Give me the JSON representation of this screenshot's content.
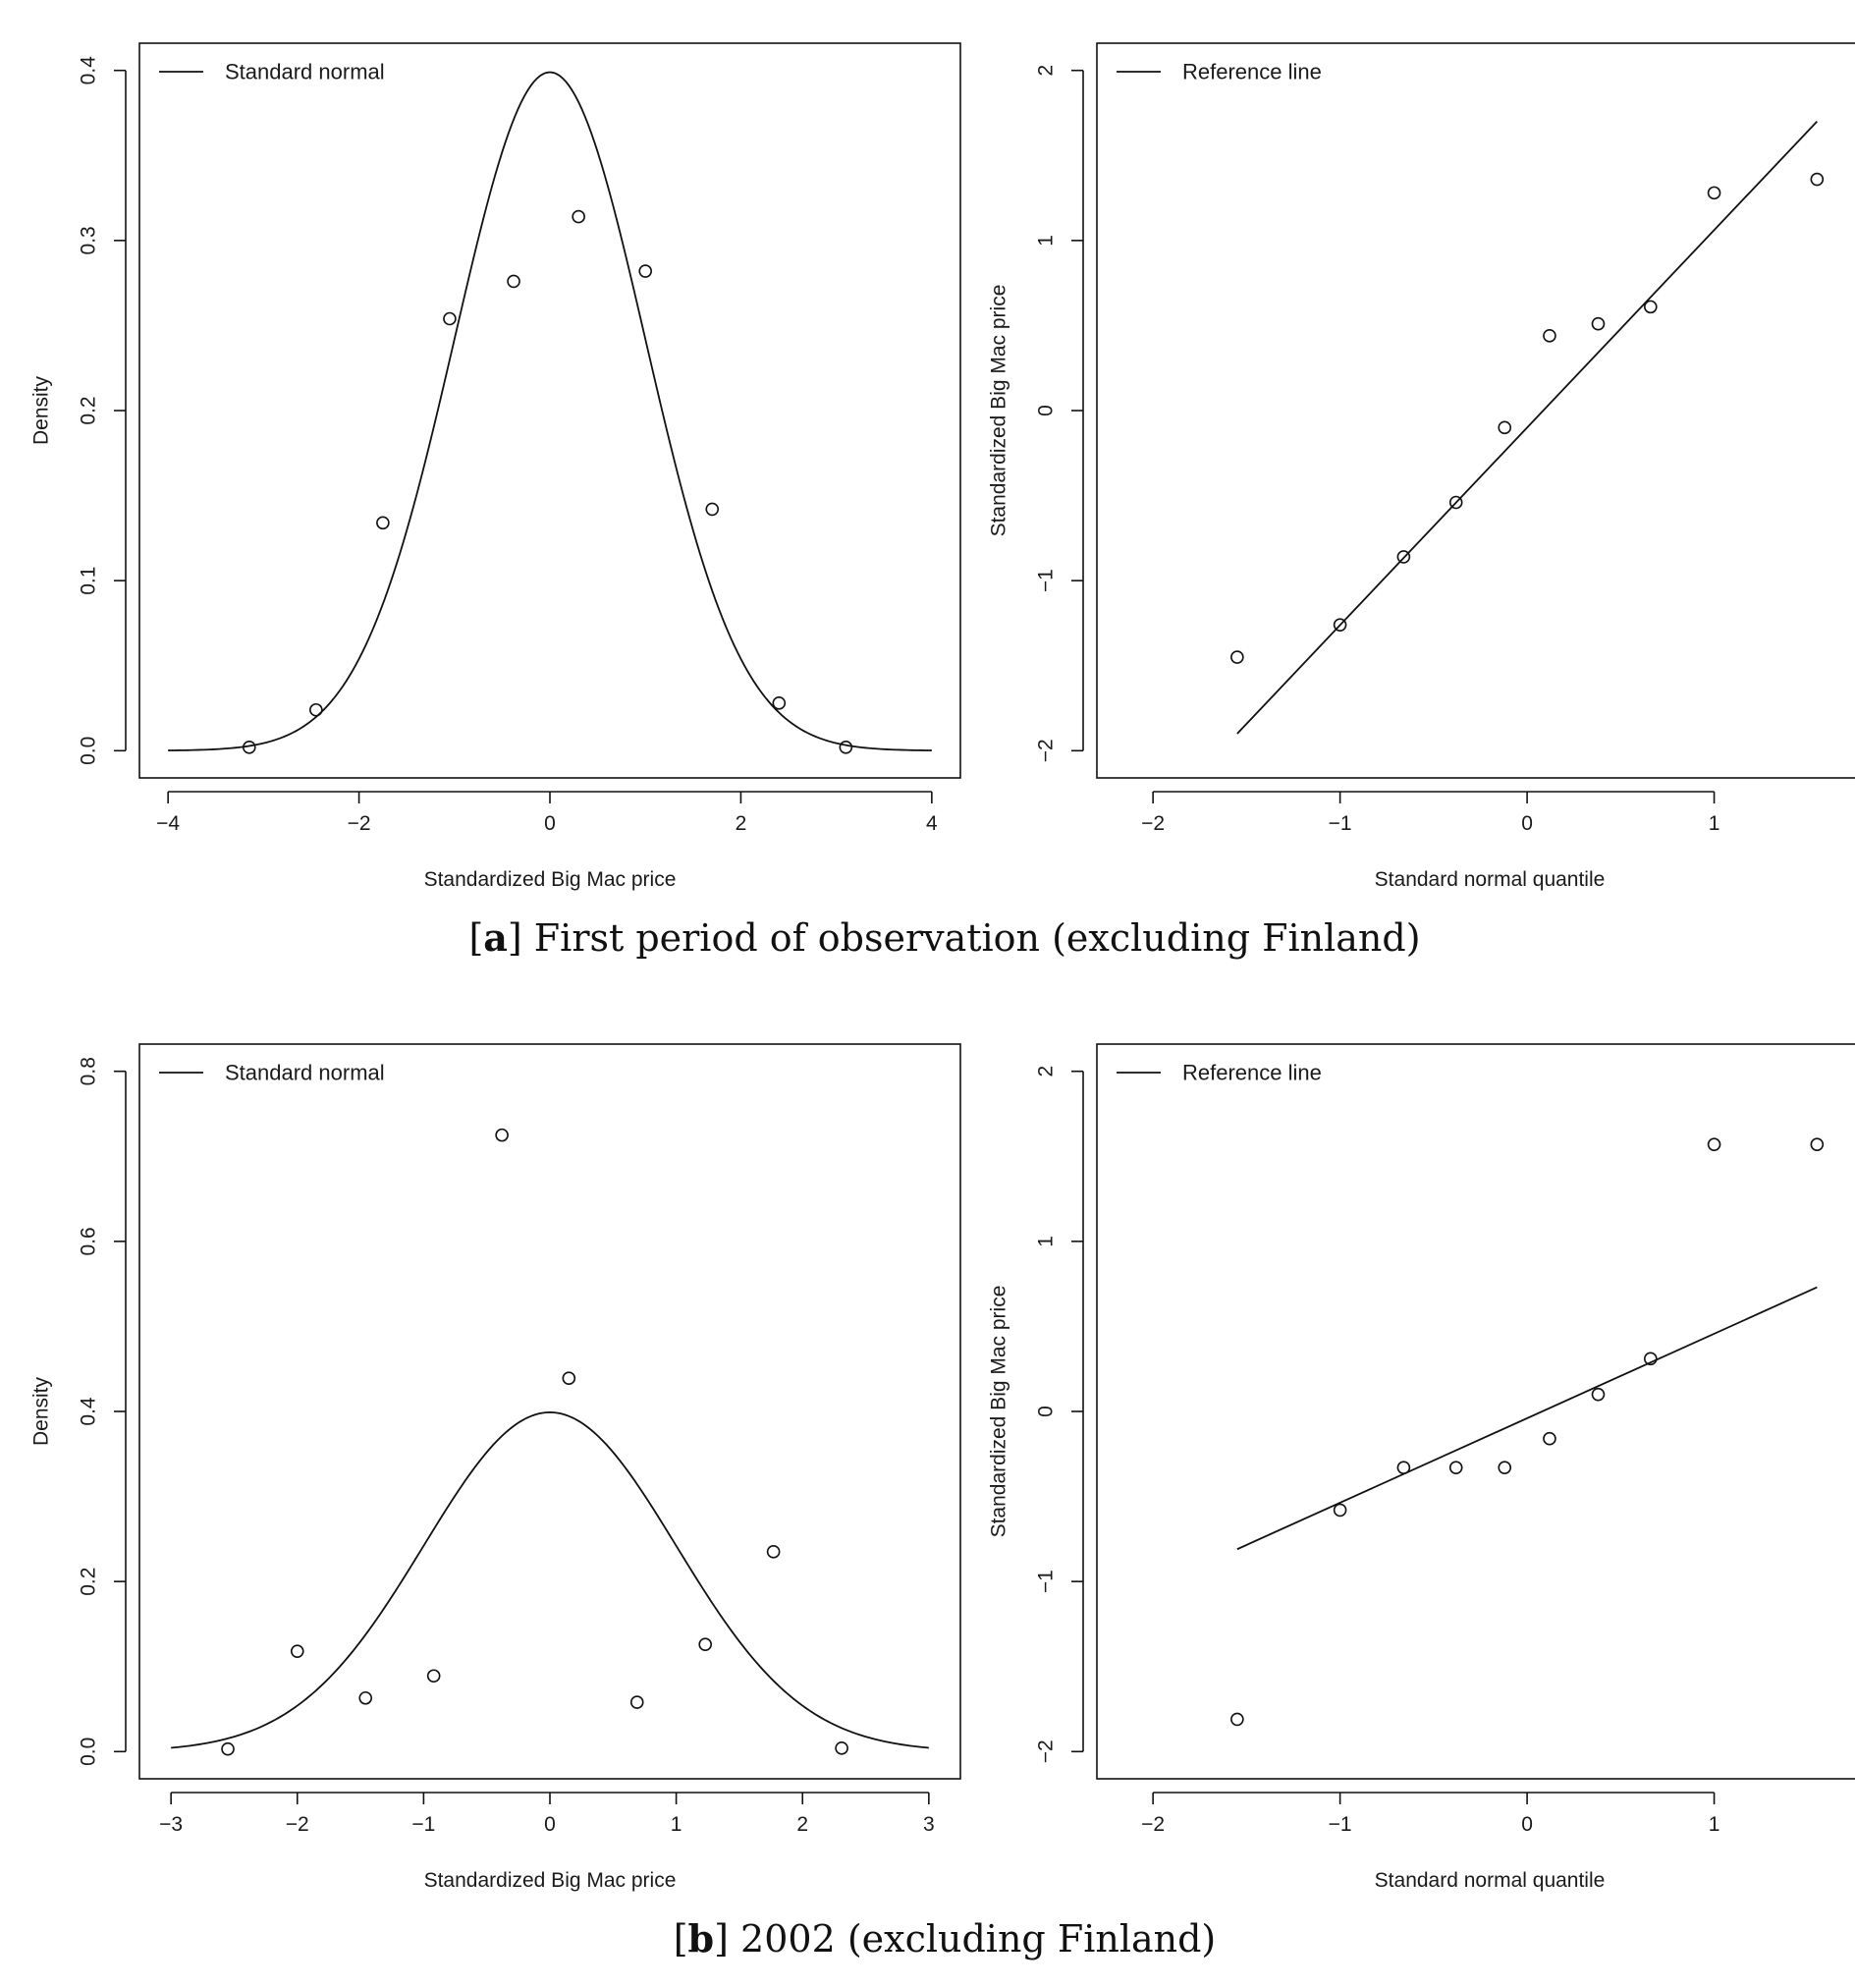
{
  "captions": {
    "a_letter": "a",
    "a_text": " First period of observation (excluding Finland)",
    "b_letter": "b",
    "b_text": " 2002 (excluding Finland)"
  },
  "chart_data": [
    {
      "id": "a-density",
      "type": "line",
      "xlabel": "Standardized Big Mac price",
      "ylabel": "Density",
      "xlim": [
        -4.3,
        4.3
      ],
      "ylim": [
        -0.016,
        0.416
      ],
      "xticks": [
        -4,
        -2,
        0,
        2,
        4
      ],
      "yticks": [
        0.0,
        0.1,
        0.2,
        0.3,
        0.4
      ],
      "xtick_labels": [
        "−4",
        "−2",
        "0",
        "2",
        "4"
      ],
      "ytick_labels": [
        "0.0",
        "0.1",
        "0.2",
        "0.3",
        "0.4"
      ],
      "legend": {
        "label": "Standard normal",
        "position": "top-left"
      },
      "curve": {
        "name": "Standard normal",
        "function": "standard normal density",
        "x_range": [
          -4,
          4
        ]
      },
      "points": {
        "x": [
          -3.15,
          -2.45,
          -1.75,
          -1.05,
          -0.38,
          0.3,
          1.0,
          1.7,
          2.4,
          3.1
        ],
        "y": [
          0.002,
          0.024,
          0.134,
          0.254,
          0.276,
          0.314,
          0.282,
          0.142,
          0.028,
          0.002
        ]
      }
    },
    {
      "id": "a-qq",
      "type": "scatter",
      "xlabel": "Standard normal quantile",
      "ylabel": "Standardized Big Mac price",
      "xlim": [
        -2.3,
        1.9
      ],
      "ylim": [
        -2.16,
        2.16
      ],
      "xticks": [
        -2,
        -1,
        0,
        1
      ],
      "yticks": [
        -2,
        -1,
        0,
        1,
        2
      ],
      "xtick_labels": [
        "−2",
        "−1",
        "0",
        "1"
      ],
      "ytick_labels": [
        "−2",
        "−1",
        "0",
        "1",
        "2"
      ],
      "legend": {
        "label": "Reference line",
        "position": "top-left"
      },
      "reference_line": {
        "name": "Reference line",
        "x": [
          -1.55,
          1.55
        ],
        "y": [
          -1.9,
          1.7
        ]
      },
      "points": {
        "x": [
          -1.55,
          -1.0,
          -0.66,
          -0.38,
          -0.12,
          0.12,
          0.38,
          0.66,
          1.0,
          1.55
        ],
        "y": [
          -1.45,
          -1.26,
          -0.86,
          -0.54,
          -0.1,
          0.44,
          0.51,
          0.61,
          1.28,
          1.36
        ]
      }
    },
    {
      "id": "b-density",
      "type": "line",
      "xlabel": "Standardized Big Mac price",
      "ylabel": "Density",
      "xlim": [
        -3.25,
        3.25
      ],
      "ylim": [
        -0.032,
        0.832
      ],
      "xticks": [
        -3,
        -2,
        -1,
        0,
        1,
        2,
        3
      ],
      "yticks": [
        0.0,
        0.2,
        0.4,
        0.6,
        0.8
      ],
      "xtick_labels": [
        "−3",
        "−2",
        "−1",
        "0",
        "1",
        "2",
        "3"
      ],
      "ytick_labels": [
        "0.0",
        "0.2",
        "0.4",
        "0.6",
        "0.8"
      ],
      "legend": {
        "label": "Standard normal",
        "position": "top-left"
      },
      "curve": {
        "name": "Standard normal",
        "function": "standard normal density",
        "x_range": [
          -3,
          3
        ]
      },
      "points": {
        "x": [
          -2.55,
          -2.0,
          -1.46,
          -0.92,
          -0.38,
          0.15,
          0.69,
          1.23,
          1.77,
          2.31
        ],
        "y": [
          0.003,
          0.118,
          0.063,
          0.089,
          0.725,
          0.439,
          0.058,
          0.126,
          0.235,
          0.004
        ]
      }
    },
    {
      "id": "b-qq",
      "type": "scatter",
      "xlabel": "Standard normal quantile",
      "ylabel": "Standardized Big Mac price",
      "xlim": [
        -2.3,
        1.9
      ],
      "ylim": [
        -2.16,
        2.16
      ],
      "xticks": [
        -2,
        -1,
        0,
        1
      ],
      "yticks": [
        -2,
        -1,
        0,
        1,
        2
      ],
      "xtick_labels": [
        "−2",
        "−1",
        "0",
        "1"
      ],
      "ytick_labels": [
        "−2",
        "−1",
        "0",
        "1",
        "2"
      ],
      "legend": {
        "label": "Reference line",
        "position": "top-left"
      },
      "reference_line": {
        "name": "Reference line",
        "x": [
          -1.55,
          1.55
        ],
        "y": [
          -0.81,
          0.73
        ]
      },
      "points": {
        "x": [
          -1.55,
          -1.0,
          -0.66,
          -0.38,
          -0.12,
          0.12,
          0.38,
          0.66,
          1.0,
          1.55
        ],
        "y": [
          -1.81,
          -0.58,
          -0.33,
          -0.33,
          -0.33,
          -0.16,
          0.1,
          0.31,
          1.57,
          1.57
        ]
      }
    }
  ]
}
